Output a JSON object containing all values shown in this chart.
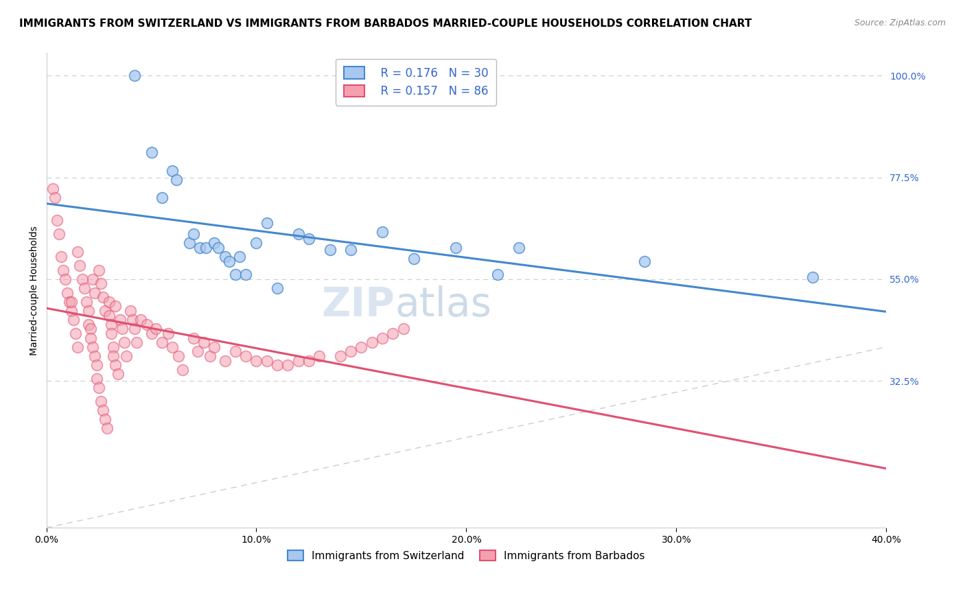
{
  "title": "IMMIGRANTS FROM SWITZERLAND VS IMMIGRANTS FROM BARBADOS MARRIED-COUPLE HOUSEHOLDS CORRELATION CHART",
  "source": "Source: ZipAtlas.com",
  "ylabel": "Married-couple Households",
  "legend_r1": "R = 0.176",
  "legend_n1": "N = 30",
  "legend_r2": "R = 0.157",
  "legend_n2": "N = 86",
  "color_swiss": "#a8c8f0",
  "color_barbados": "#f5a0b0",
  "color_swiss_line": "#4488cc",
  "color_barbados_line": "#e05070",
  "color_diagonal": "#cccccc",
  "watermark_zip": "ZIP",
  "watermark_atlas": "atlas",
  "swiss_x": [
    4.2,
    5.0,
    5.5,
    6.0,
    6.2,
    6.8,
    7.0,
    7.3,
    7.6,
    8.0,
    8.2,
    8.5,
    8.7,
    9.0,
    9.2,
    9.5,
    10.0,
    10.5,
    11.0,
    12.0,
    12.5,
    13.5,
    14.5,
    16.0,
    17.5,
    19.5,
    21.5,
    22.5,
    28.5,
    36.5
  ],
  "swiss_y": [
    100.0,
    83.0,
    73.0,
    79.0,
    77.0,
    63.0,
    65.0,
    62.0,
    62.0,
    63.0,
    62.0,
    60.0,
    59.0,
    56.0,
    60.0,
    56.0,
    63.0,
    67.5,
    53.0,
    65.0,
    64.0,
    61.5,
    61.5,
    65.5,
    59.5,
    62.0,
    56.0,
    62.0,
    59.0,
    55.5
  ],
  "barbados_x": [
    0.3,
    0.4,
    0.5,
    0.6,
    0.7,
    0.8,
    0.9,
    1.0,
    1.1,
    1.2,
    1.2,
    1.3,
    1.4,
    1.5,
    1.5,
    1.6,
    1.7,
    1.8,
    1.9,
    2.0,
    2.0,
    2.1,
    2.1,
    2.2,
    2.2,
    2.3,
    2.3,
    2.4,
    2.4,
    2.5,
    2.5,
    2.6,
    2.6,
    2.7,
    2.7,
    2.8,
    2.8,
    2.9,
    3.0,
    3.0,
    3.1,
    3.1,
    3.2,
    3.2,
    3.3,
    3.3,
    3.4,
    3.5,
    3.6,
    3.7,
    3.8,
    4.0,
    4.1,
    4.2,
    4.3,
    4.5,
    4.8,
    5.0,
    5.2,
    5.5,
    5.8,
    6.0,
    6.3,
    6.5,
    7.0,
    7.2,
    7.5,
    7.8,
    8.0,
    8.5,
    9.0,
    9.5,
    10.0,
    10.5,
    11.0,
    11.5,
    12.0,
    12.5,
    13.0,
    14.0,
    14.5,
    15.0,
    15.5,
    16.0,
    16.5,
    17.0
  ],
  "barbados_y": [
    75.0,
    73.0,
    68.0,
    65.0,
    60.0,
    57.0,
    55.0,
    52.0,
    50.0,
    48.0,
    50.0,
    46.0,
    43.0,
    40.0,
    61.0,
    58.0,
    55.0,
    53.0,
    50.0,
    48.0,
    45.0,
    44.0,
    42.0,
    40.0,
    55.0,
    52.0,
    38.0,
    36.0,
    33.0,
    31.0,
    57.0,
    54.0,
    28.0,
    26.0,
    51.0,
    48.0,
    24.0,
    22.0,
    50.0,
    47.0,
    45.0,
    43.0,
    40.0,
    38.0,
    49.0,
    36.0,
    34.0,
    46.0,
    44.0,
    41.0,
    38.0,
    48.0,
    46.0,
    44.0,
    41.0,
    46.0,
    45.0,
    43.0,
    44.0,
    41.0,
    43.0,
    40.0,
    38.0,
    35.0,
    42.0,
    39.0,
    41.0,
    38.0,
    40.0,
    37.0,
    39.0,
    38.0,
    37.0,
    37.0,
    36.0,
    36.0,
    37.0,
    37.0,
    38.0,
    38.0,
    39.0,
    40.0,
    41.0,
    42.0,
    43.0,
    44.0
  ],
  "xlim": [
    0.0,
    40.0
  ],
  "ylim": [
    0.0,
    105.0
  ],
  "ytick_vals": [
    32.5,
    55.0,
    77.5,
    100.0
  ],
  "xtick_vals": [
    0.0,
    10.0,
    20.0,
    30.0,
    40.0
  ],
  "title_fontsize": 11,
  "axis_label_fontsize": 10,
  "tick_fontsize": 10
}
